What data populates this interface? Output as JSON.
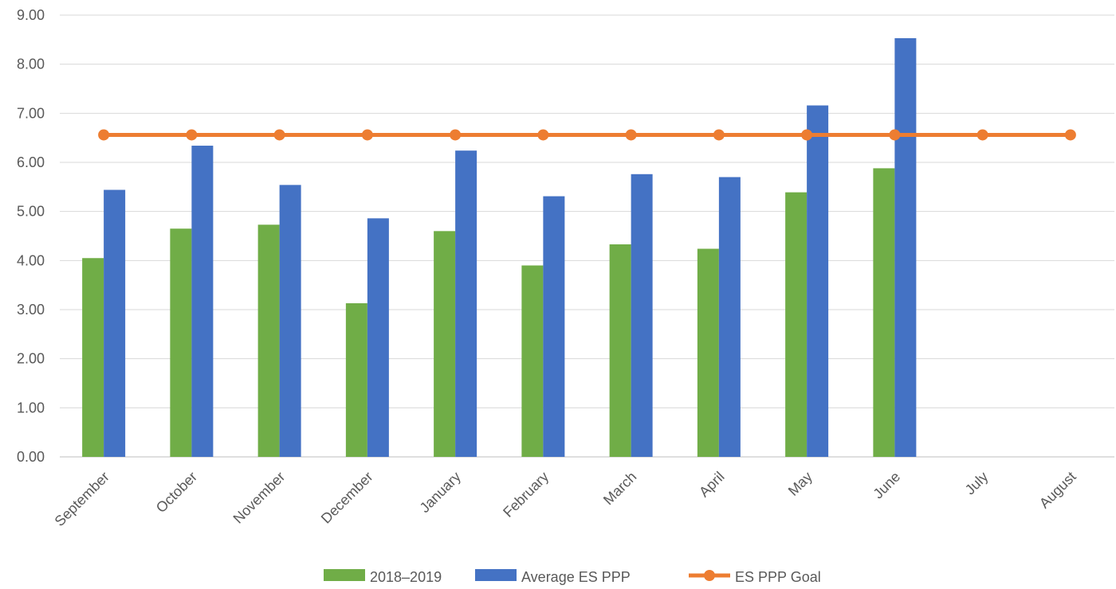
{
  "chart_data": {
    "type": "bar",
    "categories": [
      "September",
      "October",
      "November",
      "December",
      "January",
      "February",
      "March",
      "April",
      "May",
      "June",
      "July",
      "August"
    ],
    "series": [
      {
        "name": "2018–2019",
        "type": "bar",
        "color": "#70ad47",
        "values": [
          4.05,
          4.65,
          4.73,
          3.13,
          4.6,
          3.9,
          4.33,
          4.24,
          5.39,
          5.88,
          null,
          null
        ]
      },
      {
        "name": "Average ES PPP",
        "type": "bar",
        "color": "#4472c4",
        "values": [
          5.44,
          6.34,
          5.54,
          4.86,
          6.24,
          5.31,
          5.76,
          5.7,
          7.16,
          8.53,
          null,
          null
        ]
      },
      {
        "name": "ES PPP Goal",
        "type": "line",
        "color": "#ed7d31",
        "values": [
          6.56,
          6.56,
          6.56,
          6.56,
          6.56,
          6.56,
          6.56,
          6.56,
          6.56,
          6.56,
          6.56,
          6.56
        ]
      }
    ],
    "y_ticks": [
      "0.00",
      "1.00",
      "2.00",
      "3.00",
      "4.00",
      "5.00",
      "6.00",
      "7.00",
      "8.00",
      "9.00"
    ],
    "ylim": [
      0,
      9
    ],
    "grid": true,
    "legend_position": "bottom",
    "title": "",
    "xlabel": "",
    "ylabel": ""
  }
}
